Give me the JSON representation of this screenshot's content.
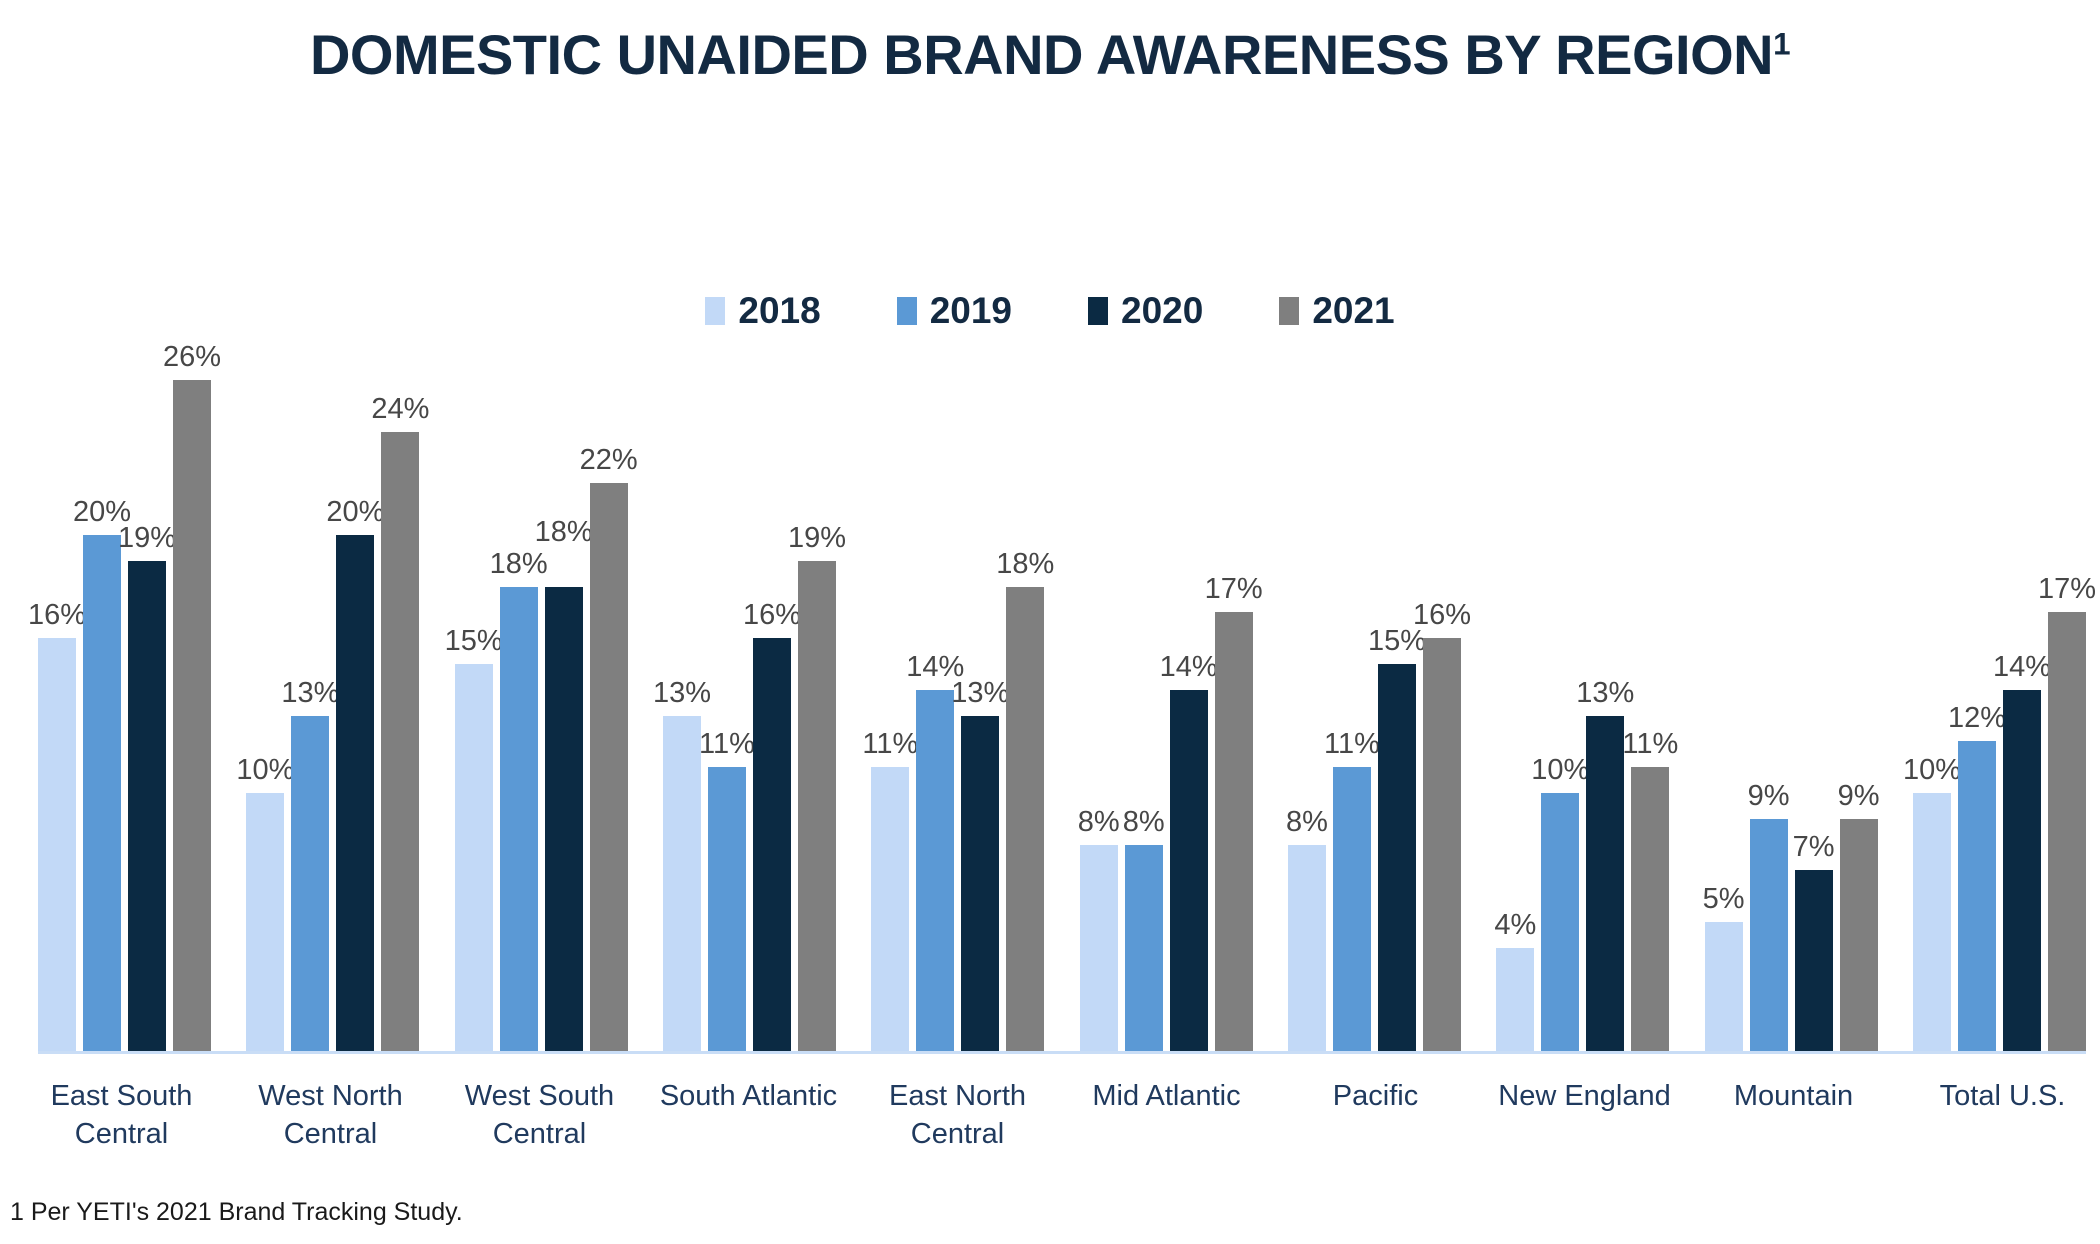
{
  "page": {
    "title": "DOMESTIC UNAIDED BRAND AWARENESS BY REGION",
    "title_superscript": "1",
    "footnote": "1 Per YETI's 2021 Brand Tracking Study."
  },
  "colors": {
    "title_text": "#132A42",
    "legend_text": "#132A42",
    "value_label_text": "#474747",
    "category_label_text": "#203A5E",
    "axis_line": "#C9DDF6",
    "series_2018": "#C2D9F7",
    "series_2019": "#5B99D5",
    "series_2020": "#0B2A43",
    "series_2021": "#7F7F7F"
  },
  "chart_data": {
    "type": "bar",
    "title": "DOMESTIC UNAIDED BRAND AWARENESS BY REGION",
    "xlabel": "",
    "ylabel": "",
    "value_suffix": "%",
    "ylim": [
      0,
      28
    ],
    "grid": false,
    "data_labels": true,
    "legend_position": "top-center",
    "categories": [
      "East South\nCentral",
      "West North\nCentral",
      "West South\nCentral",
      "South Atlantic",
      "East North\nCentral",
      "Mid Atlantic",
      "Pacific",
      "New England",
      "Mountain",
      "Total U.S."
    ],
    "series": [
      {
        "name": "2018",
        "color": "#C2D9F7",
        "values": [
          16,
          10,
          15,
          13,
          11,
          8,
          8,
          4,
          5,
          10
        ]
      },
      {
        "name": "2019",
        "color": "#5B99D5",
        "values": [
          20,
          13,
          18,
          11,
          14,
          8,
          11,
          10,
          9,
          12
        ]
      },
      {
        "name": "2020",
        "color": "#0B2A43",
        "values": [
          19,
          20,
          18,
          16,
          13,
          14,
          15,
          13,
          7,
          14
        ]
      },
      {
        "name": "2021",
        "color": "#7F7F7F",
        "values": [
          26,
          24,
          22,
          19,
          18,
          17,
          16,
          11,
          9,
          17
        ]
      }
    ]
  }
}
